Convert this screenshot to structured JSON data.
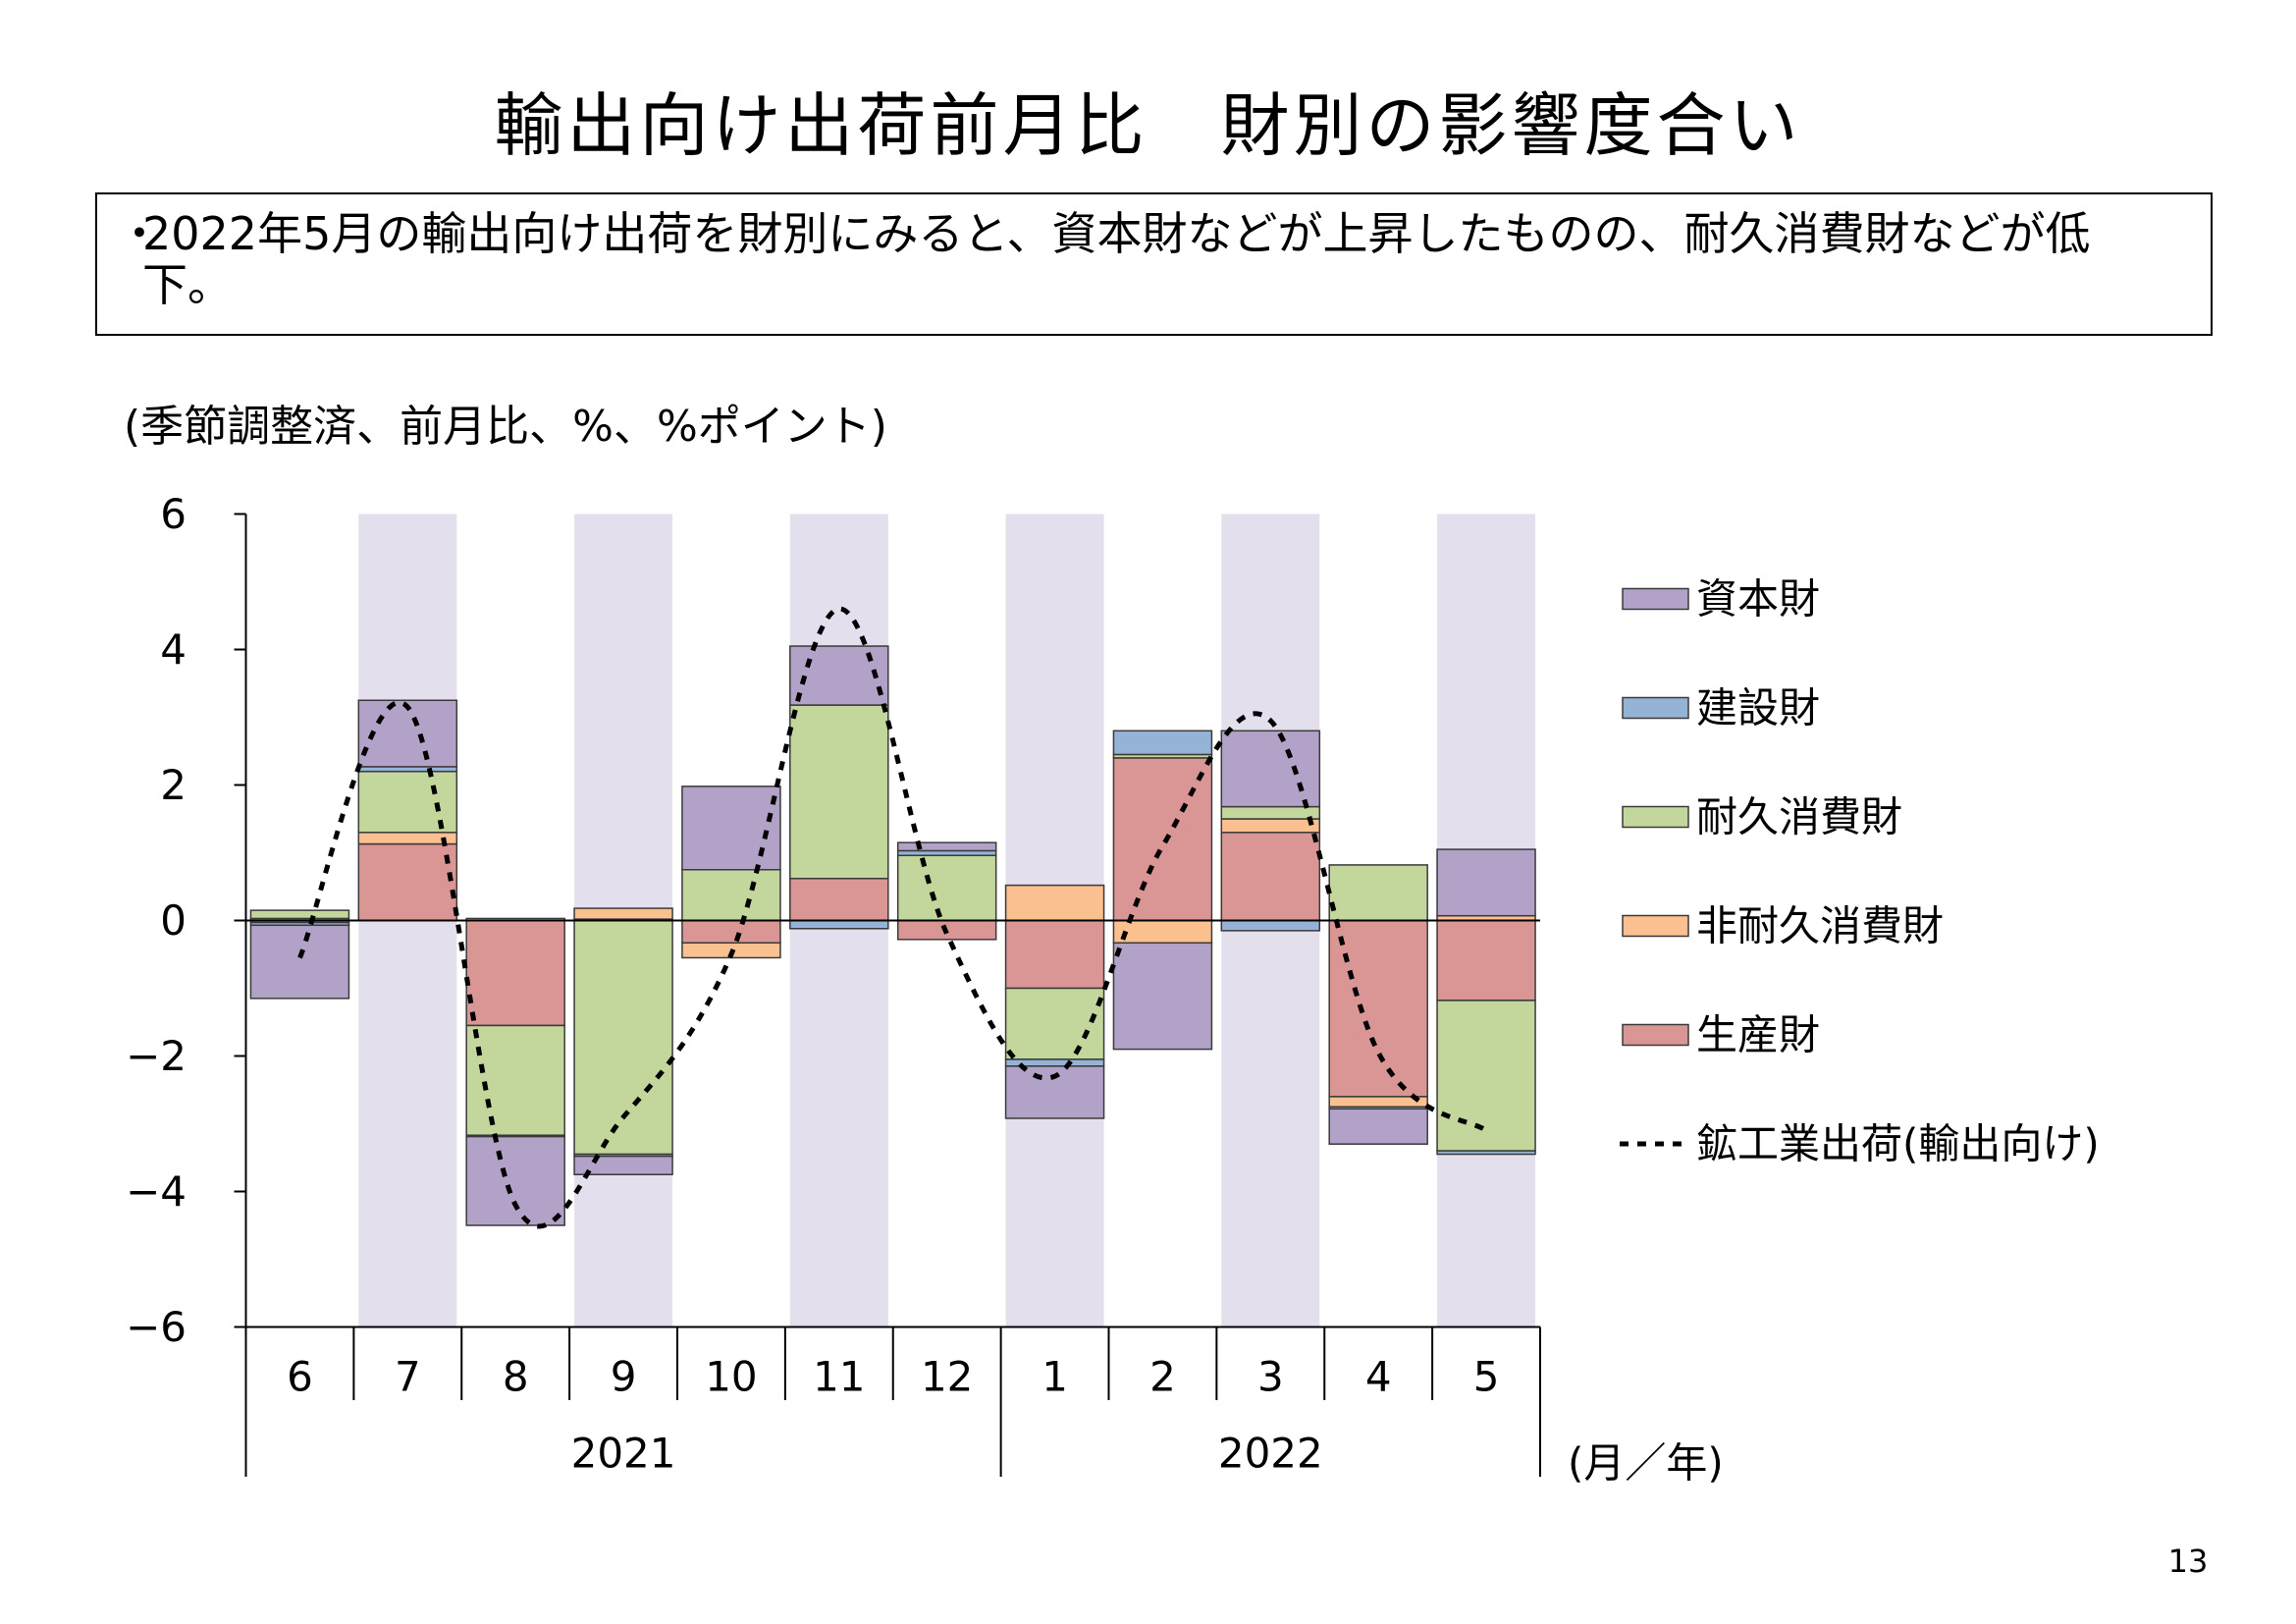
{
  "title": "輸出向け出荷前月比　財別の影響度合い",
  "summary": {
    "bullet": "・",
    "lines": [
      "2022年5月の輸出向け出荷を財別にみると、資本財などが上昇したものの、耐久消費財などが低",
      "下。"
    ]
  },
  "page_number": "13",
  "chart_data": {
    "type": "bar",
    "stacked": true,
    "unit_label": "(季節調整済、前月比、%、%ポイント)",
    "categories": [
      "6",
      "7",
      "8",
      "9",
      "10",
      "11",
      "12",
      "1",
      "2",
      "3",
      "4",
      "5"
    ],
    "category_years": [
      "2021",
      "2021",
      "2021",
      "2021",
      "2021",
      "2021",
      "2021",
      "2022",
      "2022",
      "2022",
      "2022",
      "2022"
    ],
    "x_unit_label": "(月／年)",
    "ylim": [
      -6,
      6
    ],
    "yticks": [
      6,
      4,
      2,
      0,
      -2,
      -4,
      -6
    ],
    "ytick_labels": [
      "6",
      "4",
      "2",
      "0",
      "−2",
      "−4",
      "−6"
    ],
    "grid": false,
    "legend": "right",
    "band_color": "#e4dfec",
    "series": [
      {
        "name": "資本財",
        "type": "bar",
        "color": "#b3a2c7",
        "values": [
          -1.08,
          0.98,
          -1.31,
          -0.27,
          1.23,
          0.87,
          0.12,
          -0.77,
          -1.57,
          1.12,
          -0.52,
          0.98
        ]
      },
      {
        "name": "建設財",
        "type": "bar",
        "color": "#95b3d7",
        "values": [
          -0.04,
          0.07,
          -0.02,
          -0.03,
          0.0,
          -0.12,
          0.07,
          -0.1,
          0.35,
          -0.15,
          -0.03,
          -0.05
        ]
      },
      {
        "name": "耐久消費財",
        "type": "bar",
        "color": "#c3d69b",
        "values": [
          0.12,
          0.9,
          -1.62,
          -3.45,
          0.75,
          2.56,
          0.96,
          -1.05,
          0.05,
          0.18,
          0.82,
          -2.22
        ]
      },
      {
        "name": "非耐久消費財",
        "type": "bar",
        "color": "#fac090",
        "values": [
          0.03,
          0.17,
          0.03,
          0.16,
          -0.22,
          0.0,
          0.0,
          0.52,
          -0.33,
          0.2,
          -0.15,
          0.07
        ]
      },
      {
        "name": "生産財",
        "type": "bar",
        "color": "#d99694",
        "values": [
          -0.03,
          1.13,
          -1.55,
          0.02,
          -0.33,
          0.62,
          -0.28,
          -1.0,
          2.4,
          1.3,
          -2.6,
          -1.18
        ]
      },
      {
        "name": "鉱工業出荷(輸出向け)",
        "type": "line",
        "color": "#000000",
        "values": [
          -0.55,
          3.15,
          -4.2,
          -2.9,
          -0.5,
          4.6,
          -0.2,
          -2.3,
          1.1,
          2.95,
          -1.95,
          -3.1
        ]
      }
    ]
  }
}
